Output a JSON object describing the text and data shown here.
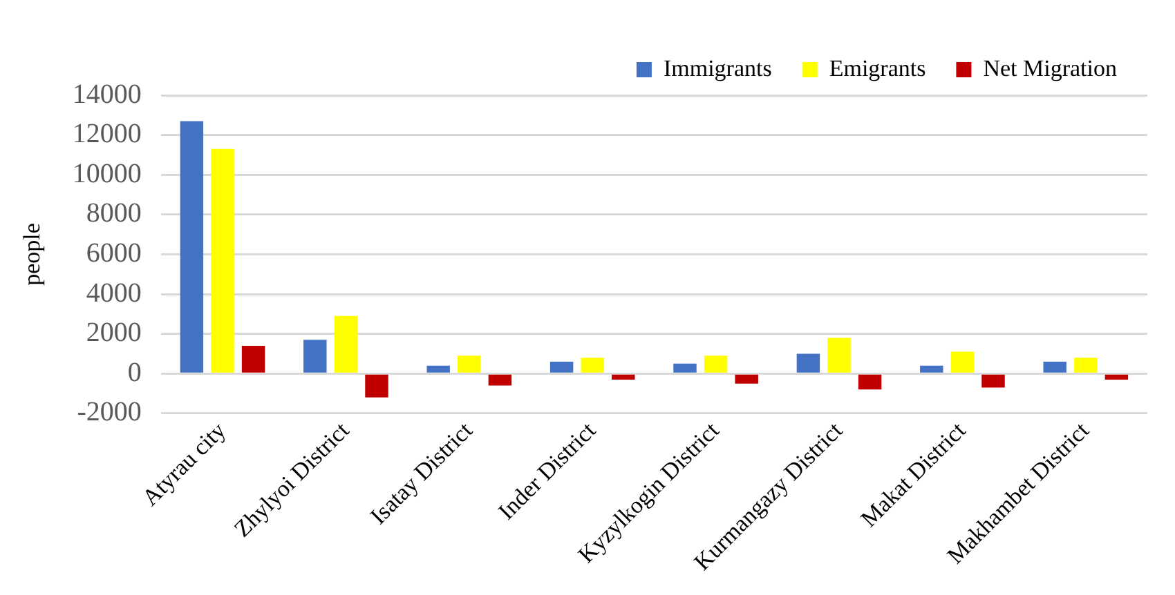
{
  "chart_data": {
    "type": "bar",
    "ylabel": "people",
    "categories": [
      "Atyrau city",
      "Zhylyoi District",
      "Isatay District",
      "Inder District",
      "Kyzylkogin District",
      "Kurmangazy District",
      "Makat District",
      "Makhambet District"
    ],
    "series": [
      {
        "name": "Immigrants",
        "color": "#4472c4",
        "values": [
          12700,
          1700,
          400,
          600,
          500,
          1000,
          400,
          600
        ]
      },
      {
        "name": "Emigrants",
        "color": "#ffff00",
        "values": [
          11300,
          2900,
          900,
          800,
          900,
          1800,
          1100,
          800
        ]
      },
      {
        "name": "Net Migration",
        "color": "#c00000",
        "values": [
          1400,
          -1200,
          -600,
          -300,
          -500,
          -800,
          -700,
          -300
        ]
      }
    ],
    "ylim": [
      -2000,
      14000
    ],
    "yticks": [
      -2000,
      0,
      2000,
      4000,
      6000,
      8000,
      10000,
      12000,
      14000
    ],
    "grid": "y",
    "legend": "top right"
  }
}
